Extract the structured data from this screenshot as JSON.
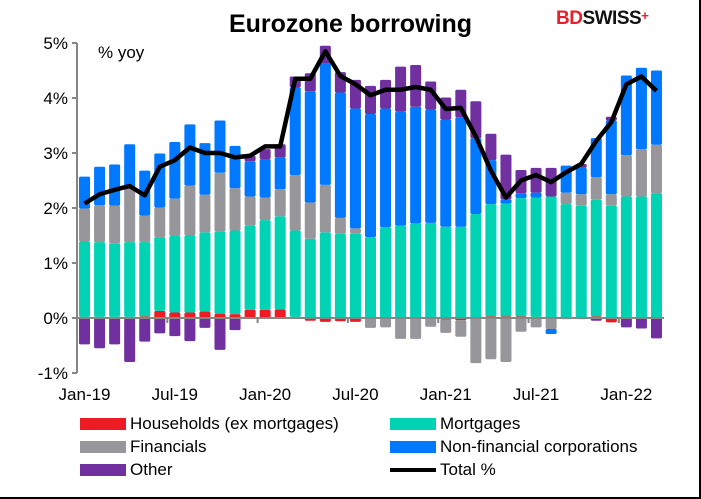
{
  "chart_data": {
    "type": "bar",
    "stacked": true,
    "title": "Eurozone borrowing",
    "ylabel": "% yoy",
    "ylim": [
      -1,
      5
    ],
    "yticks": [
      "-1%",
      "0%",
      "1%",
      "2%",
      "3%",
      "4%",
      "5%"
    ],
    "xtick_labels": [
      "Jan-19",
      "Jul-19",
      "Jan-20",
      "Jul-20",
      "Jan-21",
      "Jul-21",
      "Jan-22"
    ],
    "grid": false,
    "legend_position": "bottom",
    "categories": [
      "Jan-19",
      "Feb-19",
      "Mar-19",
      "Apr-19",
      "May-19",
      "Jun-19",
      "Jul-19",
      "Aug-19",
      "Sep-19",
      "Oct-19",
      "Nov-19",
      "Dec-19",
      "Jan-20",
      "Feb-20",
      "Mar-20",
      "Apr-20",
      "May-20",
      "Jun-20",
      "Jul-20",
      "Aug-20",
      "Sep-20",
      "Oct-20",
      "Nov-20",
      "Dec-20",
      "Jan-21",
      "Feb-21",
      "Mar-21",
      "Apr-21",
      "May-21",
      "Jun-21",
      "Jul-21",
      "Aug-21",
      "Sep-21",
      "Oct-21",
      "Nov-21",
      "Dec-21",
      "Jan-22",
      "Feb-22",
      "Mar-22"
    ],
    "series": [
      {
        "name": "Households (ex mortgages)",
        "color": "#ed1c24",
        "values": [
          0.02,
          0.02,
          0.02,
          0.02,
          0.03,
          0.13,
          0.1,
          0.1,
          0.12,
          0.08,
          0.07,
          0.15,
          0.15,
          0.16,
          0.02,
          -0.05,
          -0.07,
          -0.06,
          -0.07,
          0,
          0,
          0,
          0,
          0,
          -0.03,
          -0.04,
          0,
          0.03,
          0.03,
          0.03,
          0.02,
          0,
          -0.02,
          -0.02,
          0.03,
          -0.08,
          0,
          0,
          0
        ]
      },
      {
        "name": "Mortgages",
        "color": "#00d2b4",
        "values": [
          1.37,
          1.36,
          1.34,
          1.36,
          1.35,
          1.34,
          1.39,
          1.4,
          1.44,
          1.49,
          1.52,
          1.53,
          1.63,
          1.69,
          1.57,
          1.44,
          1.56,
          1.53,
          1.54,
          1.47,
          1.65,
          1.68,
          1.72,
          1.73,
          1.66,
          1.66,
          1.89,
          2.04,
          2.05,
          2.15,
          2.17,
          2.21,
          2.07,
          2.04,
          2.12,
          2.04,
          2.21,
          2.21,
          2.27
        ]
      },
      {
        "name": "Financials",
        "color": "#96969b",
        "values": [
          0.6,
          0.67,
          0.68,
          0.98,
          0.48,
          0.54,
          0.68,
          0.91,
          0.68,
          1.07,
          0.77,
          0.53,
          0.41,
          0.49,
          1.01,
          0.66,
          0.86,
          0.29,
          0.09,
          -0.18,
          -0.17,
          -0.38,
          -0.38,
          -0.16,
          -0.24,
          -0.3,
          -0.82,
          -0.75,
          -0.8,
          -0.25,
          -0.17,
          -0.2,
          0.21,
          0.21,
          0.41,
          0.21,
          0.75,
          0.86,
          0.88
        ]
      },
      {
        "name": "Non-financial corporations",
        "color": "#0078ff",
        "values": [
          0.58,
          0.7,
          0.75,
          0.8,
          0.82,
          0.98,
          1.03,
          1.11,
          0.94,
          0.95,
          0.77,
          0.64,
          0.7,
          0.58,
          1.59,
          2.02,
          2.21,
          2.28,
          2.18,
          2.24,
          2.16,
          2.07,
          2.12,
          2.06,
          1.95,
          1.99,
          1.38,
          0.8,
          0.08,
          0.09,
          0.09,
          -0.09,
          0.49,
          0.48,
          0.71,
          1.34,
          1.45,
          1.48,
          1.35
        ]
      },
      {
        "name": "Other",
        "color": "#7030a0",
        "values": [
          -0.48,
          -0.55,
          -0.48,
          -0.8,
          -0.43,
          -0.28,
          -0.33,
          -0.42,
          -0.18,
          -0.58,
          -0.22,
          0.1,
          0.18,
          0.24,
          0.2,
          0.33,
          0.32,
          0.37,
          0.52,
          0.51,
          0.52,
          0.82,
          0.76,
          0.51,
          0.4,
          0.5,
          0.67,
          0.48,
          0.81,
          0.42,
          0.45,
          0.52,
          0,
          0.07,
          -0.05,
          0.07,
          -0.17,
          -0.19,
          -0.37
        ]
      },
      {
        "name": "Total %",
        "type": "line",
        "color": "#000000",
        "values": [
          2.08,
          2.25,
          2.33,
          2.4,
          2.23,
          2.75,
          2.87,
          3.1,
          3.0,
          3.0,
          2.92,
          2.95,
          3.12,
          3.12,
          4.35,
          4.35,
          4.85,
          4.4,
          4.25,
          4.05,
          4.15,
          4.15,
          4.2,
          4.15,
          3.8,
          3.82,
          3.3,
          2.68,
          2.19,
          2.5,
          2.6,
          2.47,
          2.65,
          2.8,
          3.22,
          3.56,
          4.25,
          4.39,
          4.13
        ]
      }
    ]
  },
  "logo": {
    "part1": "BD",
    "part2": "SWISS",
    "mark": "+"
  }
}
